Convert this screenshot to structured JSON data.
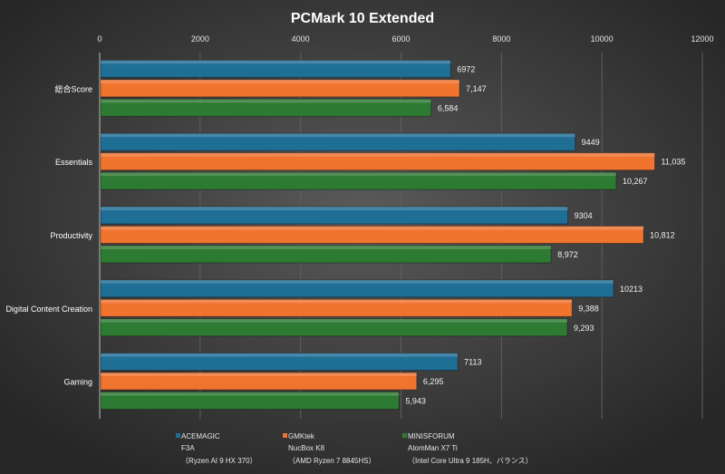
{
  "chart_data": {
    "type": "bar",
    "orientation": "horizontal",
    "title": "PCMark 10 Extended",
    "categories": [
      "総合Score",
      "Essentials",
      "Productivity",
      "Digital Content Creation",
      "Gaming"
    ],
    "xlim": [
      0,
      12000
    ],
    "xticks": [
      0,
      2000,
      4000,
      6000,
      8000,
      10000,
      12000
    ],
    "axis_position": "top",
    "grid": true,
    "legend_placement": "bottom",
    "series": [
      {
        "name": "ACEMAGIC",
        "name_line2": "F3A",
        "name_line3": "（Ryzen AI 9 HX 370）",
        "color": "#1f6e96",
        "values": [
          6972,
          9449,
          9304,
          10213,
          7113
        ],
        "labels": [
          "6972",
          "9449",
          "9304",
          "10213",
          "7113"
        ]
      },
      {
        "name": "GMKtek",
        "name_line2": "NucBox K8",
        "name_line3": "（AMD Ryzen 7 8845HS）",
        "color": "#f0732e",
        "values": [
          7147,
          11035,
          10812,
          9388,
          6295
        ],
        "labels": [
          "7,147",
          "11,035",
          "10,812",
          "9,388",
          "6,295"
        ]
      },
      {
        "name": "MINISFORUM",
        "name_line2": "AtomMan X7 Ti",
        "name_line3": "（Intel Core Ultra 9 185H、バランス）",
        "color": "#2d7a32",
        "values": [
          6584,
          10267,
          8972,
          9293,
          5943
        ],
        "labels": [
          "6,584",
          "10,267",
          "8,972",
          "9,293",
          "5,943"
        ]
      }
    ]
  }
}
